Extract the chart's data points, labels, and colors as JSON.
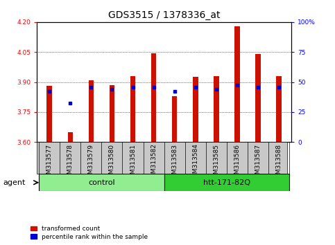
{
  "title": "GDS3515 / 1378336_at",
  "categories": [
    "GSM313577",
    "GSM313578",
    "GSM313579",
    "GSM313580",
    "GSM313581",
    "GSM313582",
    "GSM313583",
    "GSM313584",
    "GSM313585",
    "GSM313586",
    "GSM313587",
    "GSM313588"
  ],
  "red_values": [
    3.88,
    3.65,
    3.91,
    3.885,
    3.93,
    4.045,
    3.83,
    3.925,
    3.93,
    4.18,
    4.04,
    3.93
  ],
  "blue_values": [
    3.855,
    3.795,
    3.875,
    3.865,
    3.875,
    3.875,
    3.855,
    3.875,
    3.865,
    3.885,
    3.875,
    3.875
  ],
  "ymin": 3.6,
  "ymax": 4.2,
  "yticks_left": [
    3.6,
    3.75,
    3.9,
    4.05,
    4.2
  ],
  "yticks_right": [
    0,
    25,
    50,
    75,
    100
  ],
  "groups": [
    {
      "label": "control",
      "start": 0,
      "end": 5,
      "color": "#90EE90"
    },
    {
      "label": "htt-171-82Q",
      "start": 6,
      "end": 11,
      "color": "#32CD32"
    }
  ],
  "bar_color": "#CC1100",
  "dot_color": "#0000CC",
  "background_color": "#ffffff",
  "tick_bg_color": "#C8C8C8",
  "agent_label": "agent",
  "legend_items": [
    {
      "color": "#CC1100",
      "label": "transformed count"
    },
    {
      "color": "#0000CC",
      "label": "percentile rank within the sample"
    }
  ],
  "title_fontsize": 10,
  "tick_fontsize": 6.5,
  "label_fontsize": 8
}
